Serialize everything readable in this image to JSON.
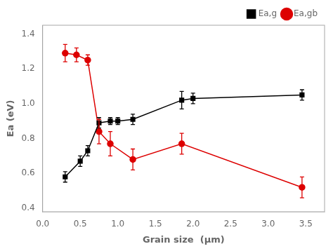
{
  "chart_data": {
    "type": "line",
    "xlabel": "Grain size  (μm)",
    "ylabel": "Ea (eV)",
    "series": [
      {
        "name": "Ea,g",
        "color": "#000000",
        "marker": "square",
        "line_style": "solid",
        "x": [
          0.3,
          0.5,
          0.6,
          0.75,
          0.9,
          1.0,
          1.2,
          1.85,
          2.0,
          3.45
        ],
        "values": [
          0.58,
          0.67,
          0.73,
          0.89,
          0.9,
          0.9,
          0.91,
          1.02,
          1.03,
          1.05
        ],
        "errors": [
          0.03,
          0.03,
          0.03,
          0.03,
          0.02,
          0.02,
          0.03,
          0.05,
          0.03,
          0.03
        ]
      },
      {
        "name": "Ea,gb",
        "color": "#dd0000",
        "marker": "circle",
        "line_style": "solid",
        "x": [
          0.3,
          0.45,
          0.6,
          0.75,
          0.9,
          1.2,
          1.85,
          3.45
        ],
        "values": [
          1.29,
          1.28,
          1.25,
          0.84,
          0.77,
          0.68,
          0.77,
          0.52
        ],
        "errors": [
          0.05,
          0.04,
          0.03,
          0.07,
          0.07,
          0.06,
          0.06,
          0.06
        ]
      }
    ],
    "xlim": [
      0.0,
      3.75
    ],
    "ylim": [
      0.38,
      1.45
    ],
    "xticks": [
      {
        "value": 0.0,
        "label": "0.0"
      },
      0.5,
      {
        "value": 1.0,
        "label": "1.0"
      },
      1.5,
      {
        "value": 2.0,
        "label": "2.0"
      },
      2.5,
      {
        "value": 3.0,
        "label": "3.0"
      },
      3.5
    ],
    "yticks": [
      0.4,
      0.6,
      0.8,
      {
        "value": 1.0,
        "label": "1.0"
      },
      1.2,
      1.4
    ],
    "grid": false,
    "legend": "upper right"
  }
}
